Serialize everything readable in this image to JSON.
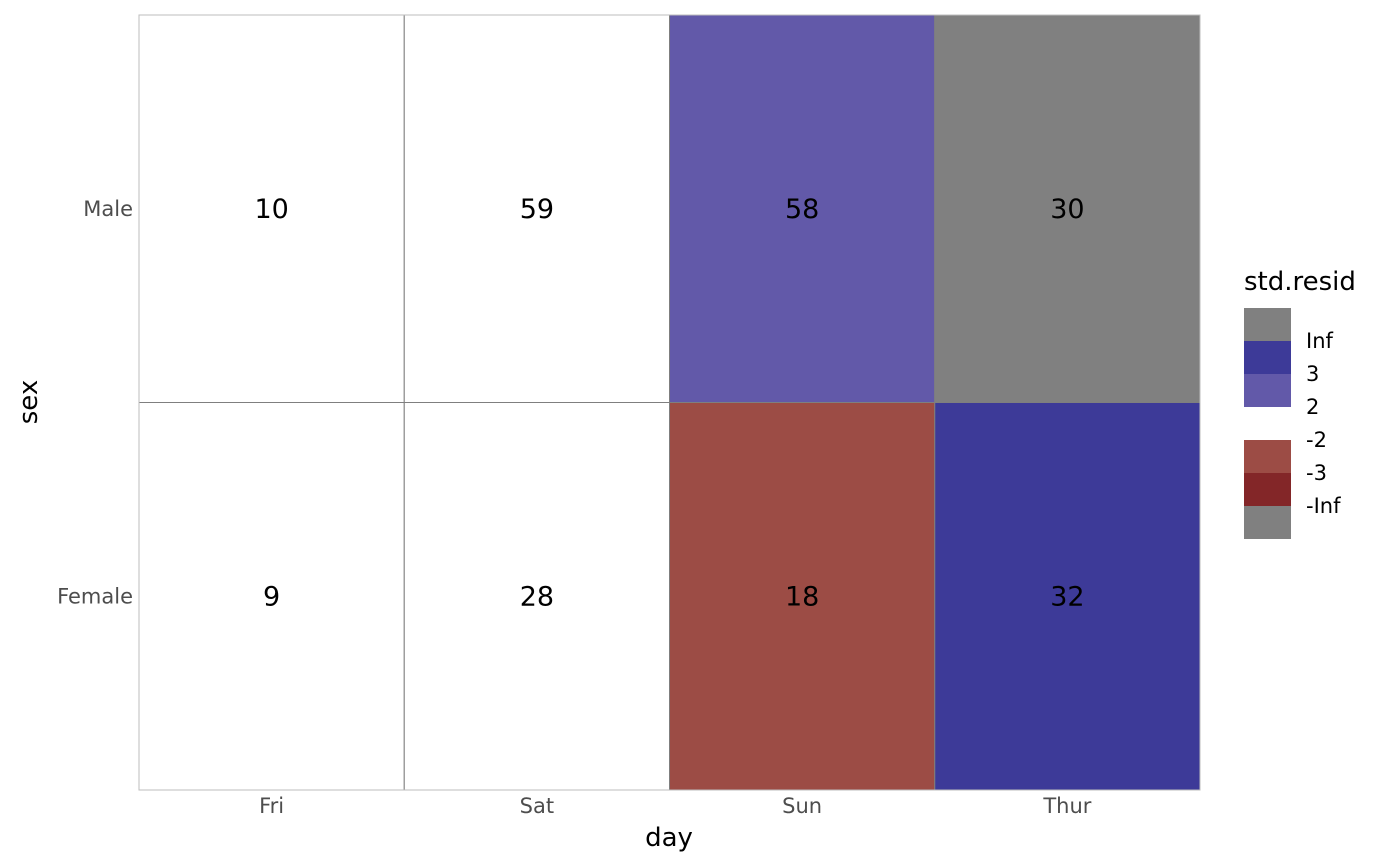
{
  "chart_data": {
    "type": "heatmap",
    "xlabel": "day",
    "ylabel": "sex",
    "x_categories": [
      "Fri",
      "Sat",
      "Sun",
      "Thur"
    ],
    "y_categories": [
      "Male",
      "Female"
    ],
    "cells": [
      {
        "x": "Fri",
        "y": "Male",
        "value": 10,
        "fill": "#ffffff"
      },
      {
        "x": "Sat",
        "y": "Male",
        "value": 59,
        "fill": "#ffffff"
      },
      {
        "x": "Sun",
        "y": "Male",
        "value": 58,
        "fill": "#6259a9"
      },
      {
        "x": "Thur",
        "y": "Male",
        "value": 30,
        "fill": "#808080"
      },
      {
        "x": "Fri",
        "y": "Female",
        "value": 9,
        "fill": "#ffffff"
      },
      {
        "x": "Sat",
        "y": "Female",
        "value": 28,
        "fill": "#ffffff"
      },
      {
        "x": "Sun",
        "y": "Female",
        "value": 18,
        "fill": "#9c4c45"
      },
      {
        "x": "Thur",
        "y": "Female",
        "value": 32,
        "fill": "#3d3a98"
      }
    ],
    "legend": {
      "title": "std.resid",
      "position": "right",
      "keys": [
        {
          "fill": "#808080"
        },
        {
          "fill": "#3d3a98"
        },
        {
          "fill": "#6259a9"
        },
        {
          "fill": "#ffffff"
        },
        {
          "fill": "#9c4c45"
        },
        {
          "fill": "#832628"
        },
        {
          "fill": "#808080"
        }
      ],
      "breaks": [
        "Inf",
        "3",
        "2",
        "-2",
        "-3",
        "-Inf"
      ]
    }
  }
}
